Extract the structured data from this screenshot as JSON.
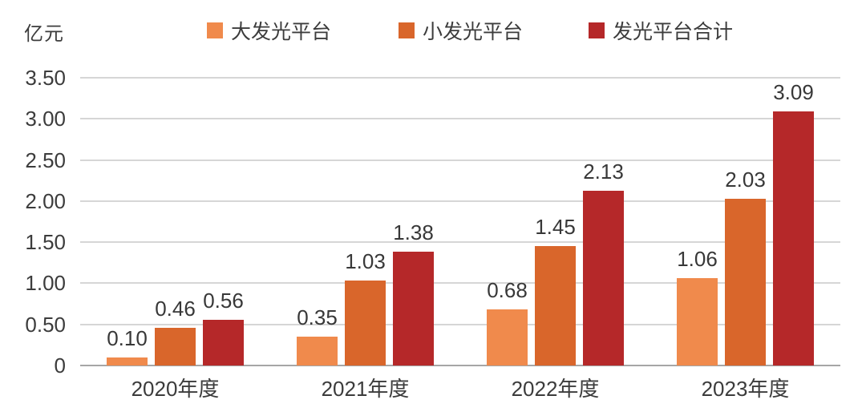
{
  "chart_data": {
    "type": "bar",
    "unit_label": "亿元",
    "categories": [
      "2020年度",
      "2021年度",
      "2022年度",
      "2023年度"
    ],
    "series": [
      {
        "name": "大发光平台",
        "color": "#F08A4C",
        "values": [
          0.1,
          0.35,
          0.68,
          1.06
        ],
        "labels": [
          "0.10",
          "0.35",
          "0.68",
          "1.06"
        ]
      },
      {
        "name": "小发光平台",
        "color": "#D9662B",
        "values": [
          0.46,
          1.03,
          1.45,
          2.03
        ],
        "labels": [
          "0.46",
          "1.03",
          "1.45",
          "2.03"
        ]
      },
      {
        "name": "发光平台合计",
        "color": "#B52829",
        "values": [
          0.56,
          1.38,
          2.13,
          3.09
        ],
        "labels": [
          "0.56",
          "1.38",
          "2.13",
          "3.09"
        ]
      }
    ],
    "y_ticks": [
      {
        "label": "3.50",
        "value": 3.5
      },
      {
        "label": "3.00",
        "value": 3.0
      },
      {
        "label": "2.50",
        "value": 2.5
      },
      {
        "label": "2.00",
        "value": 2.0
      },
      {
        "label": "1.50",
        "value": 1.5
      },
      {
        "label": "1.00",
        "value": 1.0
      },
      {
        "label": "0.50",
        "value": 0.5
      },
      {
        "label": "0",
        "value": 0.0
      }
    ],
    "ylim": [
      0,
      3.5
    ],
    "grid": true,
    "legend_position": "top"
  },
  "colors": {
    "background": "#FFFFFF",
    "text": "#3C3C3C",
    "gridline": "#D6D6D6",
    "axis_line": "#A6A6A6"
  }
}
